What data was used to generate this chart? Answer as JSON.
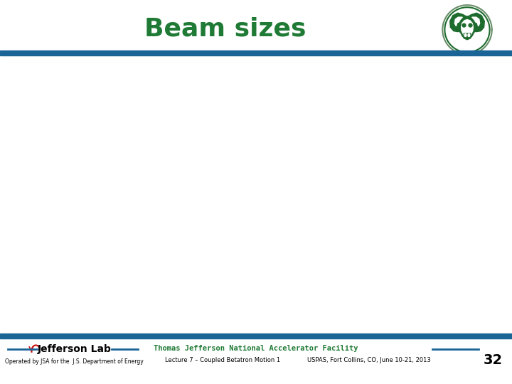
{
  "title": "Beam sizes",
  "title_color": "#1e7a34",
  "title_fontsize": 26,
  "bg_color": "#ffffff",
  "header_bar_color": "#1a6496",
  "footer_bar_color": "#1a6496",
  "footer_jlab_text": "Jefferson Lab",
  "footer_facility_text": "Thomas Jefferson National Accelerator Facility",
  "footer_facility_color": "#1e7a34",
  "footer_lecture_text": "Lecture 7 – Coupled Betatron Motion 1",
  "footer_venue_text": "USPAS, Fort Collins, CO, June 10-21, 2013",
  "footer_page_text": "32",
  "footer_operated_text": "Operated by JSA for the  J.S. Department of Energy",
  "logo_outer_color": "#6b8f6b",
  "logo_inner_color": "#1e6b2e",
  "logo_bg_color": "#ffffff"
}
